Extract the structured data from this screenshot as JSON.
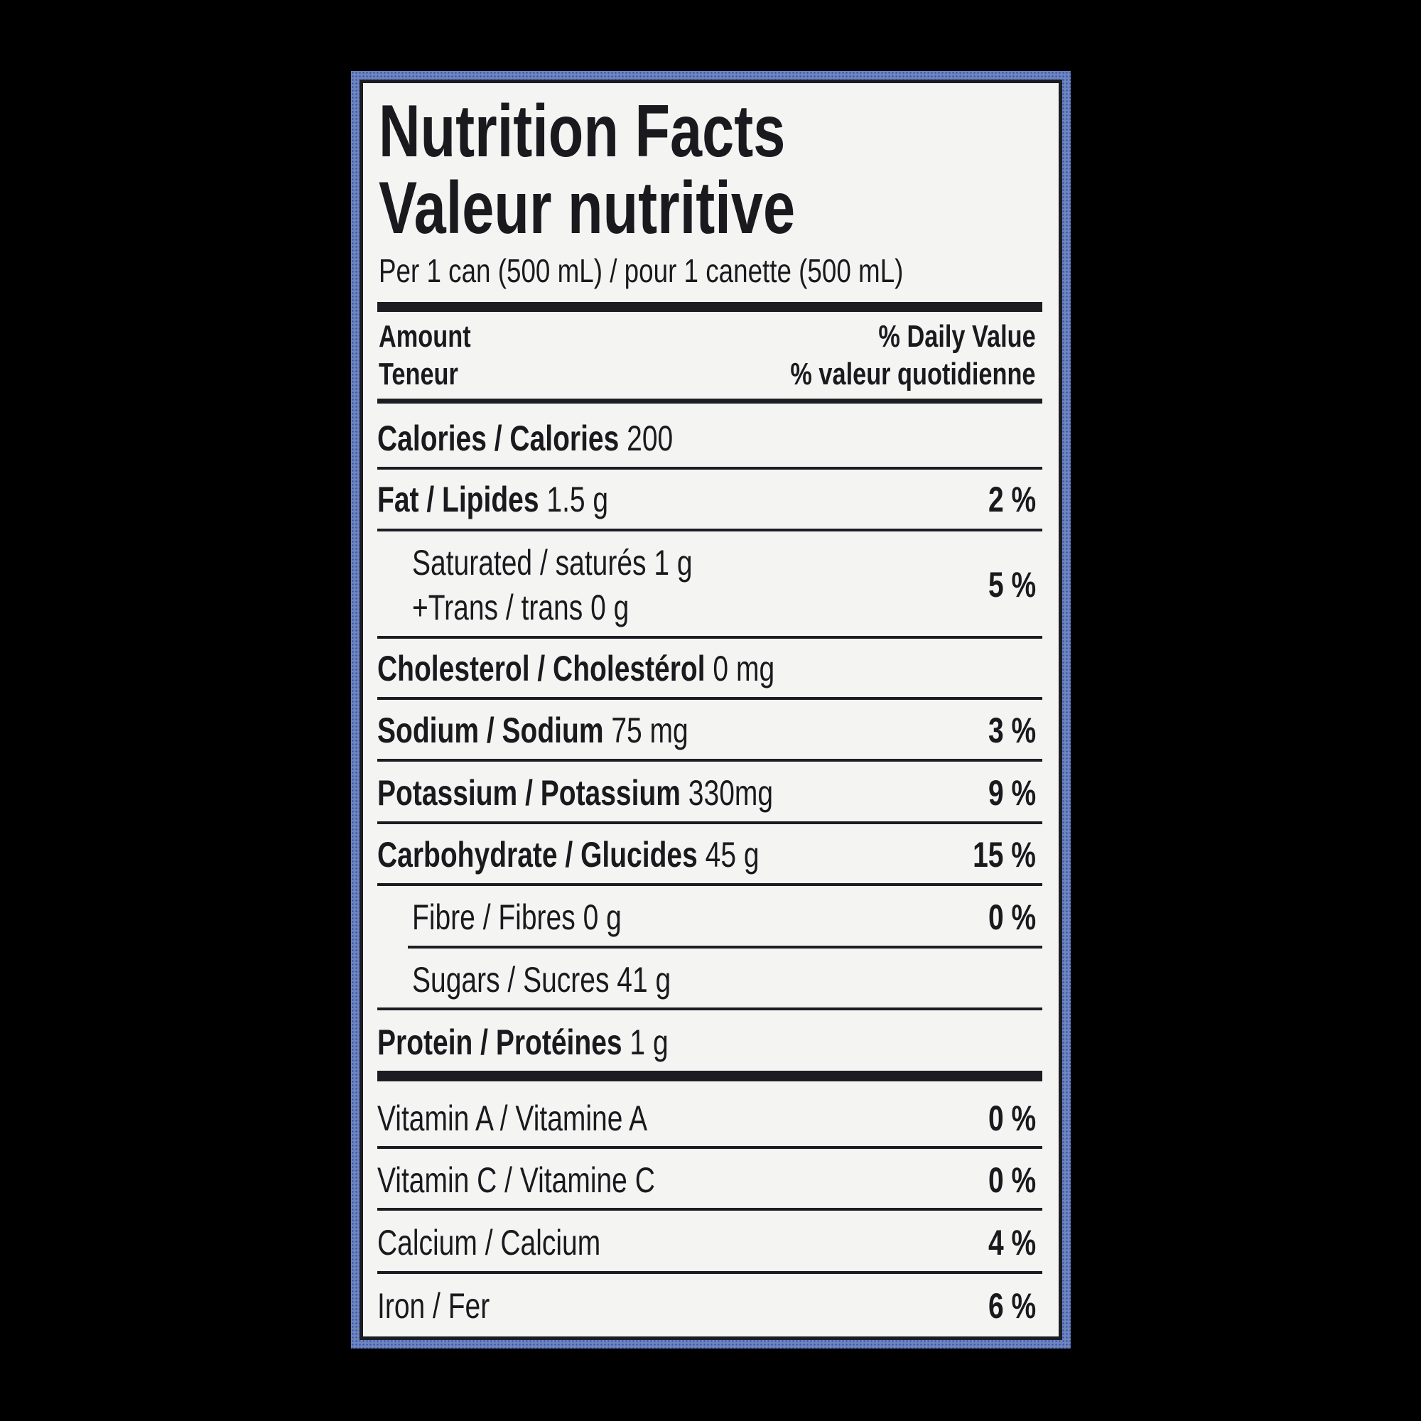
{
  "title_en": "Nutrition Facts",
  "title_fr": "Valeur nutritive",
  "serving": "Per 1 can (500 mL) / pour 1 canette (500 mL)",
  "header": {
    "amount_en": "Amount",
    "amount_fr": "Teneur",
    "dv_en": "% Daily Value",
    "dv_fr": "% valeur quotidienne"
  },
  "rows": [
    {
      "name": "Calories / Calories",
      "amount": "200",
      "dv": ""
    },
    {
      "name": "Fat / Lipides",
      "amount": "1.5 g",
      "dv": "2 %"
    },
    {
      "name": "Saturated / saturés",
      "amount": "1 g",
      "name2": "+Trans / trans",
      "amount2": "0 g",
      "dv": "5 %"
    },
    {
      "name": "Cholesterol / Cholestérol",
      "amount": "0 mg",
      "dv": ""
    },
    {
      "name": "Sodium / Sodium",
      "amount": "75 mg",
      "dv": "3 %"
    },
    {
      "name": "Potassium / Potassium",
      "amount": "330mg",
      "dv": "9 %"
    },
    {
      "name": "Carbohydrate / Glucides",
      "amount": "45 g",
      "dv": "15 %"
    },
    {
      "name": "Fibre / Fibres",
      "amount": "0 g",
      "dv": "0 %"
    },
    {
      "name": "Sugars / Sucres",
      "amount": "41 g",
      "dv": ""
    },
    {
      "name": "Protein / Protéines",
      "amount": "1 g",
      "dv": ""
    }
  ],
  "vitamins": [
    {
      "name": "Vitamin A / Vitamine A",
      "dv": "0 %"
    },
    {
      "name": "Vitamin C / Vitamine C",
      "dv": "0 %"
    },
    {
      "name": "Calcium / Calcium",
      "dv": "4 %"
    },
    {
      "name": "Iron / Fer",
      "dv": "6 %"
    }
  ],
  "colors": {
    "border": "#5b73b8",
    "panel": "#f4f5f3",
    "ink": "#1a1a1e"
  }
}
